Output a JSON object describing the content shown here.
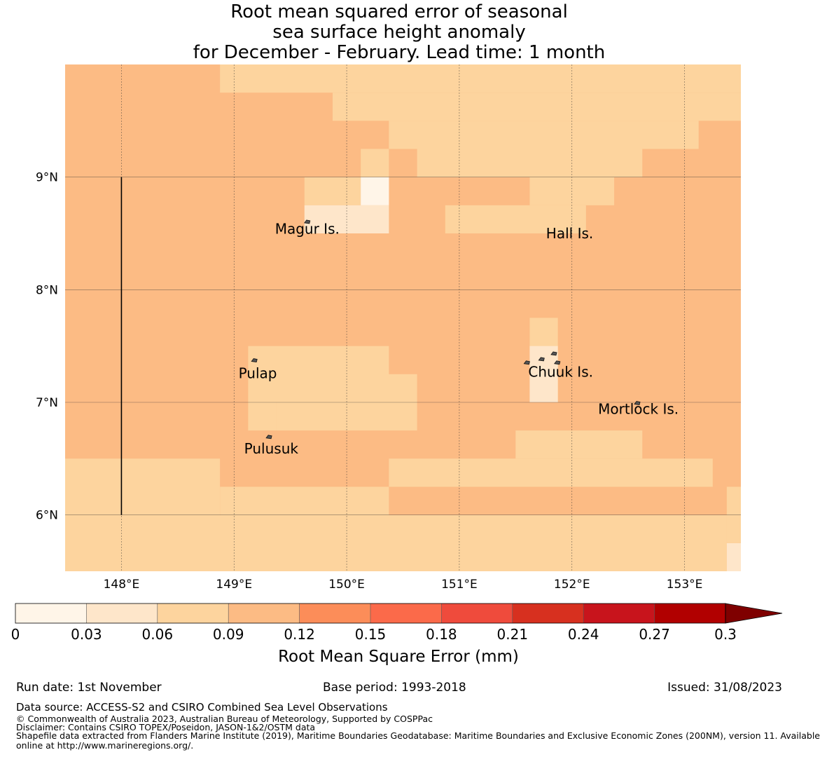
{
  "title": {
    "line1": "Root mean squared error of seasonal",
    "line2": "sea surface height anomaly",
    "line3": "for December - February. Lead time: 1 month"
  },
  "map": {
    "lon_range": [
      147.5,
      153.5
    ],
    "lat_range": [
      5.5,
      10.0
    ],
    "lon_ticks": [
      {
        "value": 148,
        "label": "148°E"
      },
      {
        "value": 149,
        "label": "149°E"
      },
      {
        "value": 150,
        "label": "150°E"
      },
      {
        "value": 151,
        "label": "151°E"
      },
      {
        "value": 152,
        "label": "152°E"
      },
      {
        "value": 153,
        "label": "153°E"
      }
    ],
    "lat_ticks": [
      {
        "value": 9,
        "label": "9°N"
      },
      {
        "value": 8,
        "label": "8°N"
      },
      {
        "value": 7,
        "label": "7°N"
      },
      {
        "value": 6,
        "label": "6°N"
      }
    ],
    "base_rmse": 0.1,
    "cells": [
      {
        "lon": [
          147.5,
          148.875
        ],
        "lat": [
          6.0,
          6.5
        ],
        "rmse": 0.075
      },
      {
        "lon": [
          147.5,
          153.375
        ],
        "lat": [
          5.5,
          6.0
        ],
        "rmse": 0.075
      },
      {
        "lon": [
          153.375,
          153.5
        ],
        "lat": [
          5.5,
          5.75
        ],
        "rmse": 0.045
      },
      {
        "lon": [
          153.375,
          153.5
        ],
        "lat": [
          5.75,
          6.25
        ],
        "rmse": 0.075
      },
      {
        "lon": [
          150.375,
          153.25
        ],
        "lat": [
          6.25,
          6.5
        ],
        "rmse": 0.075
      },
      {
        "lon": [
          151.5,
          152.625
        ],
        "lat": [
          6.5,
          6.75
        ],
        "rmse": 0.075
      },
      {
        "lon": [
          148.875,
          150.375
        ],
        "lat": [
          6.0,
          6.25
        ],
        "rmse": 0.075
      },
      {
        "lon": [
          149.125,
          150.375
        ],
        "lat": [
          7.0,
          7.5
        ],
        "rmse": 0.075
      },
      {
        "lon": [
          149.125,
          149.375
        ],
        "lat": [
          6.75,
          7.0
        ],
        "rmse": 0.075
      },
      {
        "lon": [
          149.375,
          150.625
        ],
        "lat": [
          6.75,
          7.25
        ],
        "rmse": 0.075
      },
      {
        "lon": [
          151.625,
          151.875
        ],
        "lat": [
          7.0,
          7.75
        ],
        "rmse": 0.075
      },
      {
        "lon": [
          151.625,
          151.875
        ],
        "lat": [
          7.0,
          7.5
        ],
        "rmse": 0.045
      },
      {
        "lon": [
          148.875,
          153.5
        ],
        "lat": [
          9.75,
          10.0
        ],
        "rmse": 0.075
      },
      {
        "lon": [
          149.875,
          153.5
        ],
        "lat": [
          9.5,
          9.75
        ],
        "rmse": 0.075
      },
      {
        "lon": [
          150.375,
          153.125
        ],
        "lat": [
          9.25,
          9.5
        ],
        "rmse": 0.075
      },
      {
        "lon": [
          150.625,
          152.625
        ],
        "lat": [
          9.0,
          9.25
        ],
        "rmse": 0.075
      },
      {
        "lon": [
          151.625,
          152.375
        ],
        "lat": [
          8.75,
          9.0
        ],
        "rmse": 0.075
      },
      {
        "lon": [
          150.875,
          152.125
        ],
        "lat": [
          8.5,
          8.75
        ],
        "rmse": 0.075
      },
      {
        "lon": [
          150.125,
          150.375
        ],
        "lat": [
          9.0,
          9.25
        ],
        "rmse": 0.075
      },
      {
        "lon": [
          149.625,
          150.125
        ],
        "lat": [
          8.75,
          9.0
        ],
        "rmse": 0.075
      },
      {
        "lon": [
          149.625,
          150.375
        ],
        "lat": [
          8.5,
          8.75
        ],
        "rmse": 0.045
      },
      {
        "lon": [
          150.125,
          150.375
        ],
        "lat": [
          8.75,
          9.0
        ],
        "rmse": 0.015
      }
    ],
    "island_labels": [
      {
        "name": "Magur Is.",
        "lon": 149.65,
        "lat": 8.53
      },
      {
        "name": "Hall Is.",
        "lon": 151.98,
        "lat": 8.49
      },
      {
        "name": "Pulap",
        "lon": 149.21,
        "lat": 7.25
      },
      {
        "name": "Chuuk Is.",
        "lon": 151.9,
        "lat": 7.26
      },
      {
        "name": "Mortlock Is.",
        "lon": 152.59,
        "lat": 6.93
      },
      {
        "name": "Pulusuk",
        "lon": 149.33,
        "lat": 6.58
      }
    ],
    "island_shapes": [
      {
        "lon": 149.65,
        "lat": 8.6
      },
      {
        "lon": 149.18,
        "lat": 7.37
      },
      {
        "lon": 149.31,
        "lat": 6.69
      },
      {
        "lon": 151.6,
        "lat": 7.35
      },
      {
        "lon": 151.73,
        "lat": 7.38
      },
      {
        "lon": 151.84,
        "lat": 7.43
      },
      {
        "lon": 151.87,
        "lat": 7.35
      },
      {
        "lon": 152.58,
        "lat": 6.99
      }
    ],
    "reference_line": {
      "lon": 148.0,
      "lat": [
        6.0,
        9.0
      ]
    },
    "colors": {
      "grid": "#333333",
      "land": "#555555",
      "text": "#000000"
    }
  },
  "colorbar": {
    "boundaries": [
      0,
      0.03,
      0.06,
      0.09,
      0.12,
      0.15,
      0.18,
      0.21,
      0.24,
      0.27,
      0.3
    ],
    "tick_labels": [
      "0",
      "0.03",
      "0.06",
      "0.09",
      "0.12",
      "0.15",
      "0.18",
      "0.21",
      "0.24",
      "0.27",
      "0.3"
    ],
    "colors": [
      "#fff5e8",
      "#fee6ca",
      "#fdd49e",
      "#fcbb84",
      "#fc8d59",
      "#fb6a4a",
      "#ef4b3c",
      "#d7301f",
      "#c8141c",
      "#b10000"
    ],
    "extend_color": "#7f0000",
    "label": "Root Mean Square Error (mm)"
  },
  "footer": {
    "run_date": "Run date: 1st November",
    "base_period": "Base period: 1993-2018",
    "issued": "Issued: 31/08/2023",
    "data_source": "Data source: ACCESS-S2 and CSIRO Combined Sea Level Observations",
    "copyright": "© Commonwealth of Australia 2023, Australian Bureau of Meteorology, Supported by COSPPac",
    "disclaimer": "Disclaimer: Contains CSIRO TOPEX/Poseidon, JASON-1&2/OSTM data",
    "shapefile_line1": "Shapefile data extracted from Flanders Marine Institute (2019), Maritime Boundaries Geodatabase: Maritime Boundaries and Exclusive Economic Zones (200NM), version 11. Available",
    "shapefile_line2": "online at http://www.marineregions.org/."
  }
}
